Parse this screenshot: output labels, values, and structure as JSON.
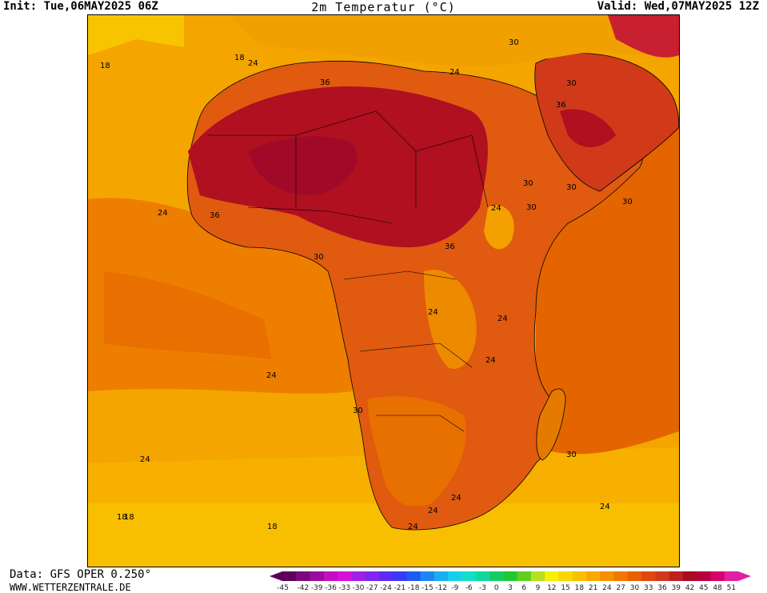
{
  "header": {
    "init": "Init: Tue,06MAY2025 06Z",
    "title": "2m Temperatur (°C)",
    "valid": "Valid: Wed,07MAY2025 12Z"
  },
  "footer": {
    "data_source": "Data: GFS OPER 0.250°",
    "website": "WWW.WETTERZENTRALE.DE"
  },
  "map": {
    "variable": "2m temperature",
    "region": "Africa",
    "contour_labels": [
      "18",
      "24",
      "18",
      "36",
      "24",
      "30",
      "30",
      "36",
      "24",
      "36",
      "30",
      "30",
      "30",
      "24",
      "30",
      "36",
      "30",
      "24",
      "24",
      "24",
      "24",
      "30",
      "24",
      "30",
      "24",
      "24",
      "18",
      "24",
      "18",
      "24",
      "18"
    ]
  },
  "colorbar": {
    "values": [
      "-45",
      "-42",
      "-39",
      "-36",
      "-33",
      "-30",
      "-27",
      "-24",
      "-21",
      "-18",
      "-15",
      "-12",
      "-9",
      "-6",
      "-3",
      "0",
      "3",
      "6",
      "9",
      "12",
      "15",
      "18",
      "21",
      "24",
      "27",
      "30",
      "33",
      "36",
      "39",
      "42",
      "45",
      "48",
      "51"
    ],
    "colors": [
      "#5e005e",
      "#7c0a7c",
      "#9c0d9c",
      "#c010c0",
      "#d90fd9",
      "#a020e6",
      "#7f26f0",
      "#5a2cf5",
      "#3a3af5",
      "#1f5af2",
      "#1e86f0",
      "#19aef0",
      "#17d0e8",
      "#10e0c8",
      "#10d89a",
      "#14cc64",
      "#20c832",
      "#60d020",
      "#b8e020",
      "#f8f000",
      "#f8d800",
      "#f8c000",
      "#f8a800",
      "#f49000",
      "#f07800",
      "#e86000",
      "#e04810",
      "#d03a18",
      "#c02020",
      "#a80c20",
      "#b80040",
      "#d8006c",
      "#e020a0"
    ]
  }
}
